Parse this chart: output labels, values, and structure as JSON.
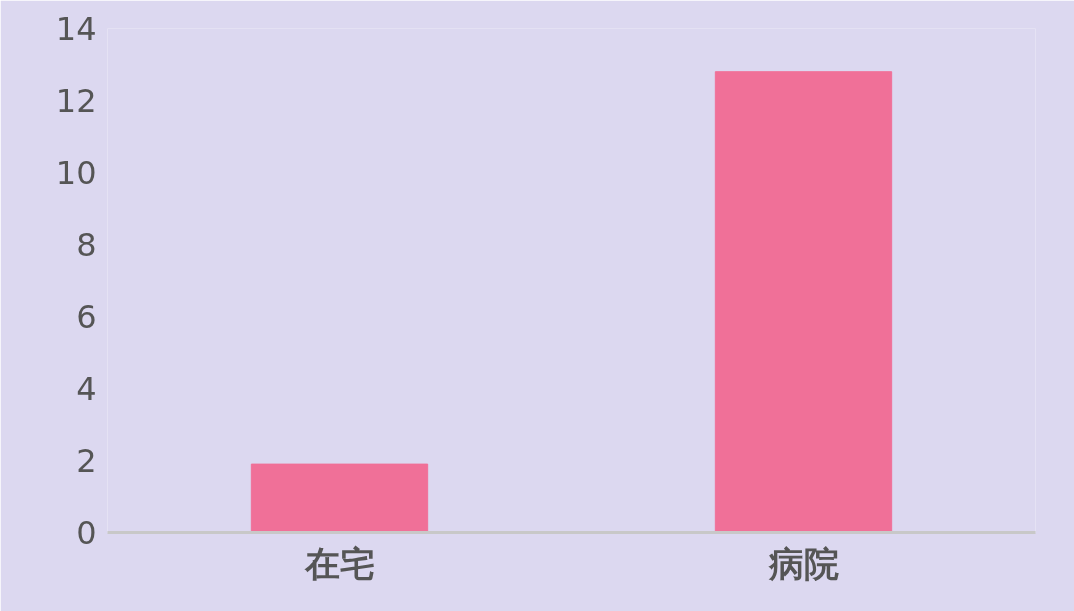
{
  "chart_data": {
    "type": "bar",
    "categories": [
      "在宅",
      "病院"
    ],
    "values": [
      1.9,
      12.8
    ],
    "color": "#f07098",
    "ylim": [
      0,
      14
    ],
    "yticks": [
      0,
      2,
      4,
      6,
      8,
      10,
      12,
      14
    ],
    "grid": false
  }
}
